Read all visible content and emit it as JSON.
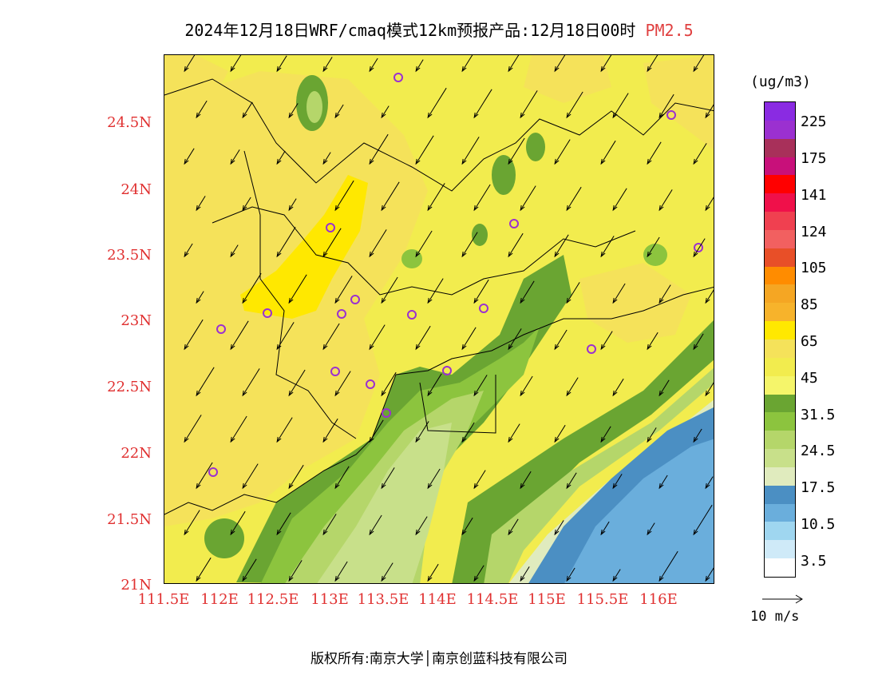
{
  "title": {
    "main": "2024年12月18日WRF/cmaq模式12km预报产品:12月18日00时",
    "variable": "PM2.5"
  },
  "y_axis": {
    "labels": [
      "24.5N",
      "24N",
      "23.5N",
      "23N",
      "22.5N",
      "22N",
      "21.5N",
      "21N"
    ]
  },
  "x_axis": {
    "labels": [
      "111.5E",
      "112E",
      "112.5E",
      "113E",
      "113.5E",
      "114E",
      "114.5E",
      "115E",
      "115.5E",
      "116E"
    ]
  },
  "colorbar": {
    "unit": "(ug/m3)",
    "colors": [
      "#8a2be2",
      "#9b30d0",
      "#a8305a",
      "#c8107a",
      "#ff0000",
      "#f0104a",
      "#f04050",
      "#f26060",
      "#e84f28",
      "#ff8c00",
      "#f5a623",
      "#f7b32b",
      "#ffe800",
      "#f5e25a",
      "#f2ec4e",
      "#f5f56a",
      "#6aa532",
      "#8cc43e",
      "#b5d66a",
      "#c8e08a",
      "#e0ebbe",
      "#4b8fc3",
      "#6aaedc",
      "#9fd6f0",
      "#cfeaf8",
      "#ffffff"
    ],
    "labels": [
      "225",
      "175",
      "141",
      "124",
      "105",
      "85",
      "65",
      "45",
      "31.5",
      "24.5",
      "17.5",
      "10.5",
      "3.5"
    ]
  },
  "wind_reference": "10  m/s",
  "copyright": "版权所有:南京大学│南京创蓝科技有限公司"
}
